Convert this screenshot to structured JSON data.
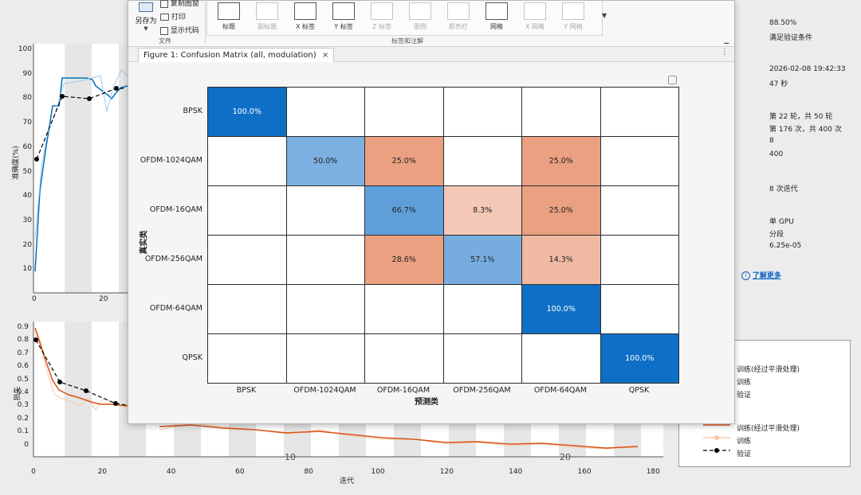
{
  "toolstrip": {
    "save_as": "另存为",
    "copy_figure": "复制图窗",
    "print": "打印",
    "show_code": "显示代码",
    "file_section": "文件",
    "labels_section": "标签和注解",
    "buttons": [
      {
        "label": "标题",
        "enabled": true
      },
      {
        "label": "副标题",
        "enabled": false
      },
      {
        "label": "X 标签",
        "enabled": true
      },
      {
        "label": "Y 标签",
        "enabled": true
      },
      {
        "label": "Z 标签",
        "enabled": false
      },
      {
        "label": "图例",
        "enabled": false
      },
      {
        "label": "颜色栏",
        "enabled": false
      },
      {
        "label": "网格",
        "enabled": true
      },
      {
        "label": "X 网格",
        "enabled": false
      },
      {
        "label": "Y 网格",
        "enabled": false
      }
    ]
  },
  "figure_tab": {
    "title": "Figure 1: Confusion Matrix (all, modulation)",
    "close": "×",
    "menu": "⋮"
  },
  "confusion": {
    "ylabel": "真实类",
    "xlabel": "预测类",
    "classes": [
      "BPSK",
      "OFDM-1024QAM",
      "OFDM-16QAM",
      "OFDM-256QAM",
      "OFDM-64QAM",
      "QPSK"
    ],
    "rows": [
      [
        "100.0%",
        "",
        "",
        "",
        "",
        ""
      ],
      [
        "",
        "50.0%",
        "25.0%",
        "",
        "25.0%",
        ""
      ],
      [
        "",
        "",
        "66.7%",
        "8.3%",
        "25.0%",
        ""
      ],
      [
        "",
        "",
        "28.6%",
        "57.1%",
        "14.3%",
        ""
      ],
      [
        "",
        "",
        "",
        "",
        "100.0%",
        ""
      ],
      [
        "",
        "",
        "",
        "",
        "",
        "100.0%"
      ]
    ],
    "values": [
      [
        100.0,
        0,
        0,
        0,
        0,
        0
      ],
      [
        0,
        50.0,
        25.0,
        0,
        25.0,
        0
      ],
      [
        0,
        0,
        66.7,
        8.3,
        25.0,
        0
      ],
      [
        0,
        0,
        28.6,
        57.1,
        14.3,
        0
      ],
      [
        0,
        0,
        0,
        0,
        100.0,
        0
      ],
      [
        0,
        0,
        0,
        0,
        0,
        100.0
      ]
    ],
    "diag_color": "#0f6fc6",
    "offdiag_color": "#d95319"
  },
  "info": {
    "accuracy": "88.50%",
    "accuracy_note": "满足验证条件",
    "start_time": "2026-02-08 19:42:33",
    "elapsed": "47 秒",
    "epoch": "第 22 轮，共 50 轮",
    "iteration": "第 176 次，共 400 次",
    "iter_per_epoch": "8",
    "max_iter": "400",
    "val_freq": "8 次迭代",
    "hardware": "单 GPU",
    "lr_schedule": "分段",
    "learning_rate": "6.25e-05",
    "learn_more": "了解更多"
  },
  "accuracy_plot": {
    "ylabel": "准确度(%)",
    "yticks": [
      "100",
      "90",
      "80",
      "70",
      "60",
      "50",
      "40",
      "30",
      "20",
      "10"
    ],
    "xticks": [
      "0",
      "20"
    ]
  },
  "loss_plot": {
    "ylabel": "损失",
    "xlabel": "迭代",
    "yticks": [
      "0.9",
      "0.8",
      "0.7",
      "0.6",
      "0.5",
      "0.4",
      "0.3",
      "0.2",
      "0.1",
      "0"
    ],
    "xticks": [
      "0",
      "20",
      "40",
      "60",
      "80",
      "100",
      "120",
      "140",
      "160",
      "180"
    ],
    "epoch_marks": [
      "10",
      "20"
    ]
  },
  "legend_top": [
    "训练(经过平滑处理)",
    "训练",
    "验证"
  ],
  "legend_bottom": [
    "训练(经过平滑处理)",
    "训练",
    "验证"
  ],
  "colors": {
    "accuracy_line": "#0072bd",
    "loss_line": "#d95319",
    "link": "#0b62c4"
  }
}
